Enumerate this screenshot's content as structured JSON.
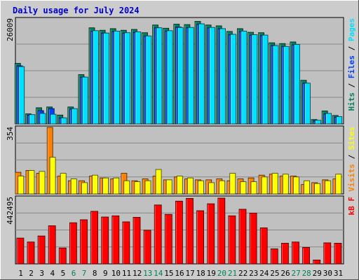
{
  "title": "Daily usage for July 2024",
  "colors": {
    "background": "#cccccc",
    "plot_bg": "#c0c0c0",
    "title": "#0000cc",
    "hits": "#00805c",
    "files": "#0040ff",
    "pages": "#00e0ff",
    "visits": "#ff8000",
    "sites": "#ffff00",
    "kbytes": "#ff0000",
    "weekend_tick": "#00805c"
  },
  "chart_data": {
    "type": "bar",
    "days": [
      "1",
      "2",
      "3",
      "4",
      "5",
      "6",
      "7",
      "8",
      "9",
      "10",
      "11",
      "12",
      "13",
      "14",
      "15",
      "16",
      "17",
      "18",
      "19",
      "20",
      "21",
      "22",
      "23",
      "24",
      "25",
      "26",
      "27",
      "28",
      "29",
      "30",
      "31"
    ],
    "weekend_days": [
      "6",
      "7",
      "13",
      "14",
      "20",
      "21",
      "27",
      "28"
    ],
    "panels": [
      {
        "name": "hits-files-pages",
        "max_label": "26009",
        "ymax": 26009,
        "legend": [
          {
            "text": "Hits",
            "color": "#00805c"
          },
          {
            "text": " / ",
            "color": "#000000"
          },
          {
            "text": "Files",
            "color": "#0040ff"
          },
          {
            "text": " / ",
            "color": "#000000"
          },
          {
            "text": "Pages",
            "color": "#00e0ff"
          }
        ],
        "series": [
          {
            "name": "Hits",
            "values": [
              15000,
              2500,
              4000,
              4200,
              2200,
              4200,
              12200,
              23800,
              23200,
              23600,
              23200,
              23400,
              22600,
              24500,
              23700,
              24700,
              24600,
              25400,
              24500,
              24300,
              22900,
              23600,
              22700,
              22600,
              20100,
              19900,
              20300,
              10800,
              1100,
              3200,
              2100
            ]
          },
          {
            "name": "Files",
            "values": [
              14400,
              2200,
              3300,
              3800,
              1500,
              3700,
              11600,
              23000,
              22500,
              22900,
              22500,
              22700,
              21800,
              23800,
              23000,
              24000,
              23800,
              24700,
              23800,
              23600,
              22100,
              22900,
              22000,
              21900,
              19400,
              19200,
              19600,
              10100,
              800,
              2500,
              1700
            ]
          },
          {
            "name": "Pages",
            "values": [
              14200,
              2300,
              2600,
              2400,
              1500,
              3800,
              11600,
              23100,
              22500,
              23000,
              22600,
              22800,
              21800,
              23800,
              23100,
              23900,
              23900,
              24800,
              23900,
              23600,
              22200,
              23000,
              22100,
              22000,
              19400,
              19200,
              19700,
              10100,
              900,
              2600,
              1800
            ]
          }
        ]
      },
      {
        "name": "visits-sites",
        "max_label": "354",
        "ymax": 354,
        "legend": [
          {
            "text": "Visits",
            "color": "#ff8000"
          },
          {
            "text": " / ",
            "color": "#000000"
          },
          {
            "text": "Sites",
            "color": "#ffff00"
          }
        ],
        "series": [
          {
            "name": "Visits",
            "values": [
              115,
              125,
              110,
              354,
              95,
              70,
              70,
              95,
              85,
              80,
              110,
              70,
              80,
              95,
              75,
              90,
              80,
              75,
              75,
              80,
              70,
              80,
              85,
              100,
              105,
              95,
              95,
              50,
              60,
              75,
              80
            ]
          },
          {
            "name": "Sites",
            "values": [
              95,
              125,
              120,
              195,
              110,
              80,
              60,
              100,
              85,
              85,
              70,
              65,
              70,
              130,
              75,
              95,
              85,
              70,
              60,
              70,
              110,
              65,
              65,
              90,
              110,
              105,
              90,
              70,
              55,
              70,
              105
            ]
          }
        ]
      },
      {
        "name": "kbytes",
        "max_label": "442495",
        "ymax": 442495,
        "legend": [
          {
            "text": "kB F",
            "color": "#ff0000"
          }
        ],
        "series": [
          {
            "name": "kB F",
            "values": [
              172000,
              146000,
              186000,
              254000,
              106000,
              274000,
              294000,
              350000,
              312000,
              320000,
              280000,
              310000,
              224000,
              392000,
              330000,
              418000,
              436000,
              354000,
              400000,
              438000,
              320000,
              364000,
              338000,
              240000,
              100000,
              138000,
              146000,
              110000,
              26000,
              140000,
              138000
            ]
          }
        ]
      }
    ]
  }
}
